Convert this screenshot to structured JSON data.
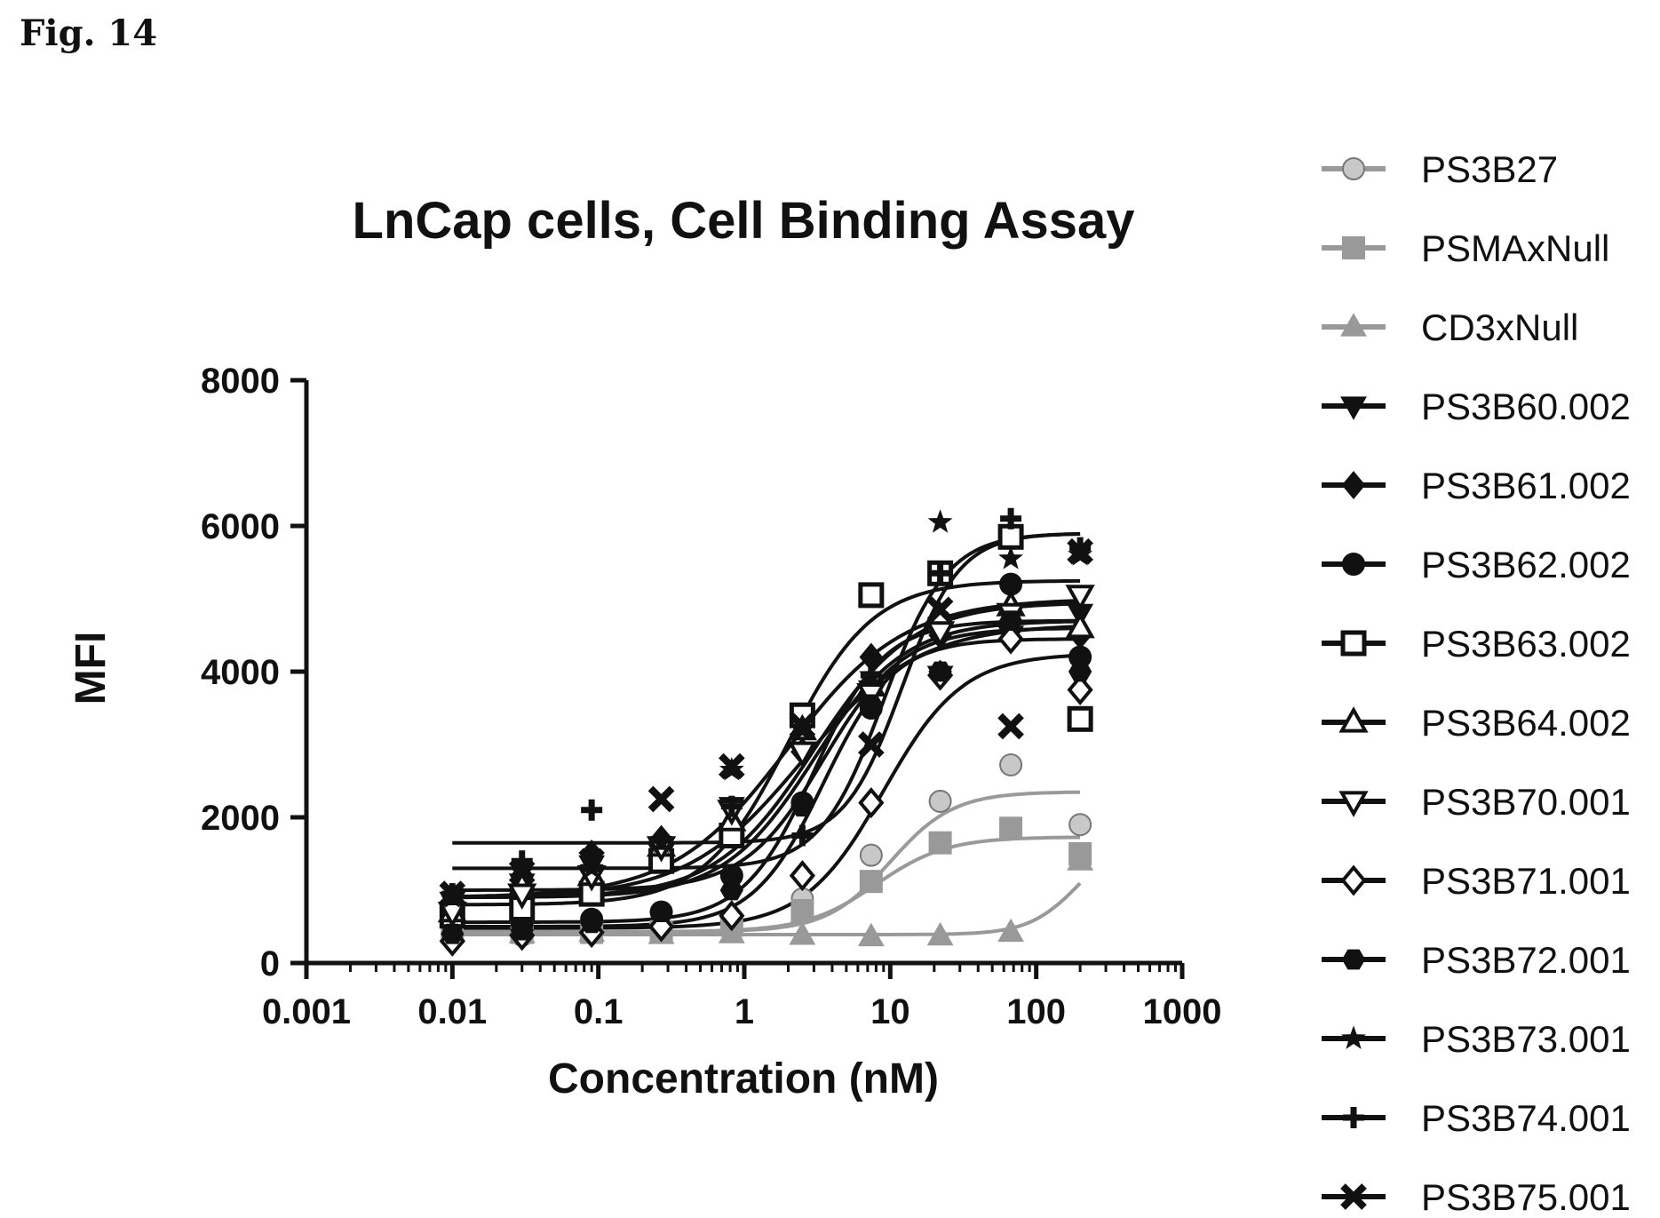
{
  "figure_label": "Fig. 14",
  "chart_data": {
    "type": "scatter",
    "title": "LnCap cells, Cell Binding Assay",
    "xlabel": "Concentration (nM)",
    "ylabel": "MFI",
    "xscale": "log",
    "xlim": [
      0.001,
      1000
    ],
    "ylim": [
      0,
      8000
    ],
    "x_ticks": [
      0.001,
      0.01,
      0.1,
      1,
      10,
      100,
      1000
    ],
    "x_tick_labels": [
      "0.001",
      "0.01",
      "0.1",
      "1",
      "10",
      "100",
      "1000"
    ],
    "y_ticks": [
      0,
      2000,
      4000,
      6000,
      8000
    ],
    "y_tick_labels": [
      "0",
      "2000",
      "4000",
      "6000",
      "8000"
    ],
    "legend_position": "right",
    "x": [
      0.01,
      0.03,
      0.09,
      0.27,
      0.82,
      2.5,
      7.4,
      22,
      67,
      200
    ],
    "series": [
      {
        "name": "PS3B27",
        "marker": "circle",
        "fill": "#c8c8c8",
        "line": "#9a9a9a",
        "values": [
          400,
          380,
          420,
          430,
          560,
          880,
          1480,
          2220,
          2720,
          1900
        ],
        "fit": {
          "bottom": 430,
          "top": 2350,
          "ec50": 10,
          "hill": 2.0
        }
      },
      {
        "name": "PSMAxNull",
        "marker": "square",
        "fill": "#999999",
        "line": "#999999",
        "values": [
          420,
          420,
          420,
          430,
          520,
          720,
          1120,
          1650,
          1850,
          1500
        ],
        "fit": {
          "bottom": 430,
          "top": 1730,
          "ec50": 8,
          "hill": 1.8
        }
      },
      {
        "name": "CD3xNull",
        "marker": "triangle",
        "fill": "#999999",
        "line": "#999999",
        "values": [
          420,
          400,
          420,
          390,
          400,
          380,
          360,
          370,
          420,
          1400
        ],
        "fit": {
          "bottom": 390,
          "top": 1800,
          "ec50": 200,
          "hill": 2.5
        }
      },
      {
        "name": "PS3B60.002",
        "marker": "triangle-down",
        "fill": "#111111",
        "line": "#111111",
        "values": [
          850,
          1100,
          1350,
          1500,
          2150,
          3300,
          3750,
          3950,
          4500,
          4800
        ],
        "fit": {
          "bottom": 900,
          "top": 4650,
          "ec50": 2.5,
          "hill": 1.1
        }
      },
      {
        "name": "PS3B61.002",
        "marker": "diamond",
        "fill": "#111111",
        "line": "#111111",
        "values": [
          850,
          1200,
          1500,
          1700,
          1850,
          2900,
          4200,
          4500,
          4600,
          4500
        ],
        "fit": {
          "bottom": 1000,
          "top": 4600,
          "ec50": 3.5,
          "hill": 1.6
        }
      },
      {
        "name": "PS3B62.002",
        "marker": "circle",
        "fill": "#111111",
        "line": "#111111",
        "values": [
          550,
          550,
          600,
          700,
          1200,
          2200,
          3500,
          4700,
          5200,
          4200
        ],
        "fit": {
          "bottom": 560,
          "top": 4700,
          "ec50": 3.0,
          "hill": 1.8
        }
      },
      {
        "name": "PS3B63.002",
        "marker": "square-open",
        "fill": "#ffffff",
        "line": "#111111",
        "values": [
          650,
          750,
          950,
          1400,
          1750,
          3400,
          5050,
          5350,
          5850,
          3350
        ],
        "fit": {
          "bottom": 800,
          "top": 5250,
          "ec50": 2.0,
          "hill": 1.5
        }
      },
      {
        "name": "PS3B64.002",
        "marker": "triangle-open",
        "fill": "#ffffff",
        "line": "#111111",
        "values": [
          700,
          1050,
          1200,
          1600,
          1950,
          3200,
          3800,
          4750,
          4900,
          4600
        ],
        "fit": {
          "bottom": 900,
          "top": 4700,
          "ec50": 3.0,
          "hill": 1.4
        }
      },
      {
        "name": "PS3B70.001",
        "marker": "triangle-down-open",
        "fill": "#ffffff",
        "line": "#111111",
        "values": [
          700,
          950,
          1200,
          1600,
          2100,
          2900,
          3700,
          4550,
          4800,
          5050
        ],
        "fit": {
          "bottom": 900,
          "top": 4950,
          "ec50": 3.0,
          "hill": 1.3
        }
      },
      {
        "name": "PS3B71.001",
        "marker": "diamond-open",
        "fill": "#ffffff",
        "line": "#111111",
        "values": [
          300,
          380,
          420,
          500,
          650,
          1200,
          2200,
          3950,
          4450,
          3750
        ],
        "fit": {
          "bottom": 480,
          "top": 4250,
          "ec50": 9,
          "hill": 1.6
        }
      },
      {
        "name": "PS3B72.001",
        "marker": "hexagon",
        "fill": "#111111",
        "line": "#111111",
        "values": [
          400,
          450,
          550,
          700,
          1000,
          2150,
          3550,
          4000,
          4700,
          4000
        ],
        "fit": {
          "bottom": 500,
          "top": 4450,
          "ec50": 3.5,
          "hill": 1.8
        }
      },
      {
        "name": "PS3B73.001",
        "marker": "star",
        "fill": "#111111",
        "line": "#111111",
        "values": [
          900,
          1250,
          1300,
          1650,
          2650,
          3200,
          3950,
          6050,
          5550,
          5600
        ],
        "fit": {
          "bottom": 1300,
          "top": 5900,
          "ec50": 9,
          "hill": 2.0
        }
      },
      {
        "name": "PS3B74.001",
        "marker": "plus",
        "fill": "#111111",
        "line": "#111111",
        "values": [
          950,
          1400,
          2100,
          1700,
          2150,
          1750,
          3950,
          5350,
          6100,
          5700
        ],
        "fit": {
          "bottom": 1650,
          "top": 5900,
          "ec50": 12,
          "hill": 2.2
        }
      },
      {
        "name": "PS3B75.001",
        "marker": "x",
        "fill": "#111111",
        "line": "#111111",
        "values": [
          950,
          1250,
          1400,
          2250,
          2700,
          3250,
          3000,
          4850,
          3250,
          5650
        ],
        "fit": {
          "bottom": 900,
          "top": 5000,
          "ec50": 2.0,
          "hill": 1.1
        }
      }
    ]
  }
}
